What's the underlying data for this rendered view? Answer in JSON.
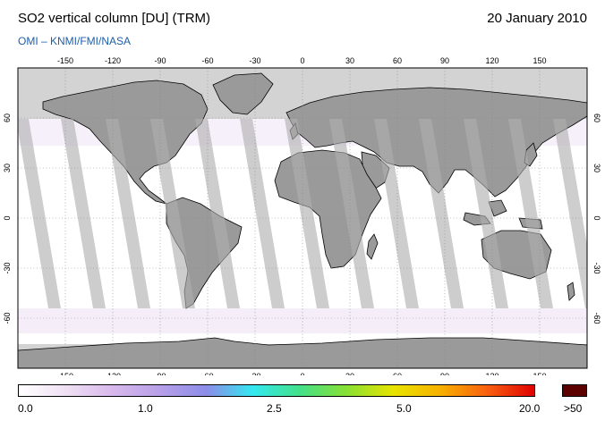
{
  "header": {
    "title": "SO2 vertical column [DU] (TRM)",
    "date": "20 January 2010",
    "credit": "OMI  –  KNMI/FMI/NASA"
  },
  "map": {
    "projection": "equirectangular",
    "lon_range": [
      -180,
      180
    ],
    "lat_range": [
      -90,
      90
    ],
    "lon_ticks": [
      "-150",
      "-120",
      "-90",
      "-60",
      "-30",
      "0",
      "30",
      "60",
      "90",
      "120",
      "150"
    ],
    "lat_ticks": [
      "60",
      "30",
      "0",
      "-30",
      "-60"
    ],
    "colors": {
      "no_data_polar": "#d3d3d3",
      "land": "#9a9a9a",
      "orbit_gap_ocean": "#cdcdcd",
      "orbit_gap_land": "#8a8a8a",
      "coastline": "#000000",
      "grid": "#888888"
    }
  },
  "legend": {
    "labels": [
      "0.0",
      "1.0",
      "2.5",
      "5.0",
      "20.0",
      ">50"
    ],
    "colors": [
      "#ffffff",
      "#f0e0f4",
      "#d8b8ec",
      "#b8a0e8",
      "#8c8ce8",
      "#33e8f0",
      "#44e088",
      "#88e033",
      "#e8e400",
      "#f8b000",
      "#f86010",
      "#e00000"
    ],
    "overflow_color": "#5c0000"
  }
}
